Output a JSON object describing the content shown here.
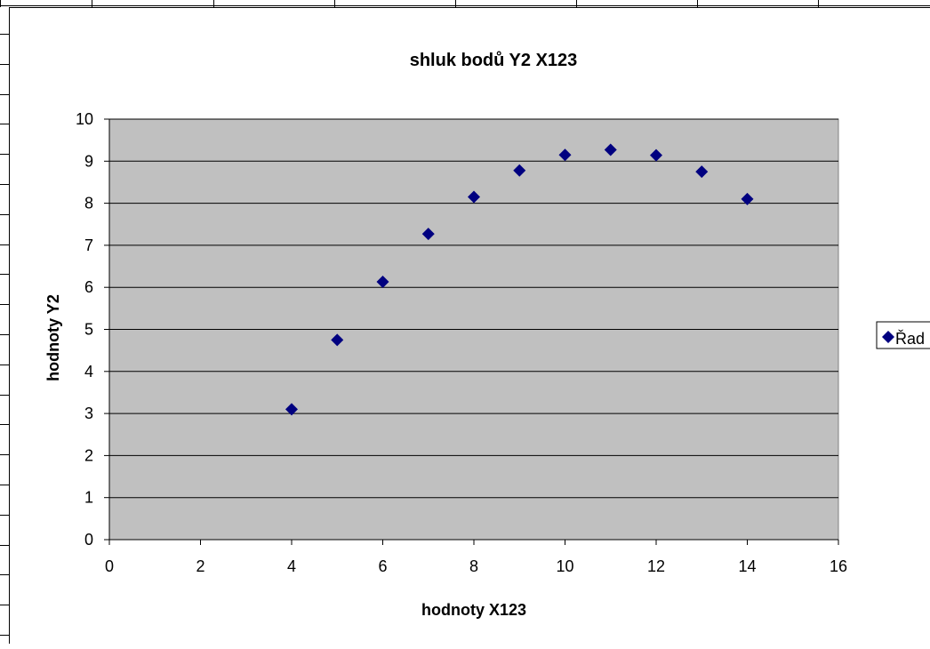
{
  "chart_data": {
    "type": "scatter",
    "title": "shluk bodů Y2 X123",
    "xlabel": "hodnoty X123",
    "ylabel": "hodnoty Y2",
    "xlim": [
      0,
      16
    ],
    "ylim": [
      0,
      10
    ],
    "xticks": [
      0,
      2,
      4,
      6,
      8,
      10,
      12,
      14,
      16
    ],
    "yticks": [
      0,
      1,
      2,
      3,
      4,
      5,
      6,
      7,
      8,
      9,
      10
    ],
    "grid": "horizontal major gridlines",
    "legend_position": "right (cut off)",
    "series": [
      {
        "name": "Řad",
        "color": "#000080",
        "marker": "diamond",
        "x": [
          4,
          5,
          6,
          7,
          8,
          9,
          10,
          11,
          12,
          13,
          14
        ],
        "y": [
          3.1,
          4.75,
          6.13,
          7.27,
          8.15,
          8.78,
          9.15,
          9.27,
          9.14,
          8.75,
          8.1
        ]
      }
    ],
    "plot_background": "#c0c0c0"
  }
}
